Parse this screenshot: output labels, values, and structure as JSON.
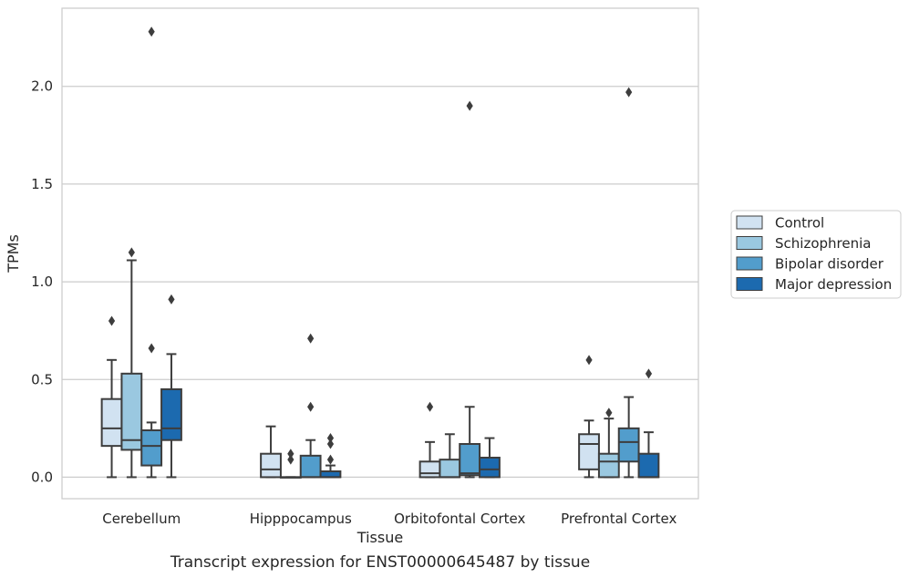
{
  "chart_data": {
    "type": "box",
    "xlabel": "Tissue",
    "ylabel": "TPMs",
    "caption": "Transcript expression for ENST00000645487 by tissue",
    "ylim": [
      -0.11,
      2.4
    ],
    "yticks": [
      0.0,
      0.5,
      1.0,
      1.5,
      2.0
    ],
    "ytick_labels": [
      "0.0",
      "0.5",
      "1.0",
      "1.5",
      "2.0"
    ],
    "grid": "horizontal",
    "legend_position": "right",
    "categories": [
      "Cerebellum",
      "Hipppocampus",
      "Orbitofontal Cortex",
      "Prefrontal Cortex"
    ],
    "series": [
      {
        "name": "Control",
        "color": "#d1e2f1",
        "boxes": [
          {
            "whislo": 0.0,
            "q1": 0.16,
            "med": 0.25,
            "q3": 0.4,
            "whishi": 0.6,
            "fliers": [
              0.8
            ]
          },
          {
            "whislo": 0.0,
            "q1": 0.0,
            "med": 0.04,
            "q3": 0.12,
            "whishi": 0.26,
            "fliers": []
          },
          {
            "whislo": 0.0,
            "q1": 0.0,
            "med": 0.02,
            "q3": 0.08,
            "whishi": 0.18,
            "fliers": [
              0.36
            ]
          },
          {
            "whislo": 0.0,
            "q1": 0.04,
            "med": 0.17,
            "q3": 0.22,
            "whishi": 0.29,
            "fliers": [
              0.6
            ]
          }
        ]
      },
      {
        "name": "Schizophrenia",
        "color": "#9ac8e0",
        "boxes": [
          {
            "whislo": 0.0,
            "q1": 0.14,
            "med": 0.19,
            "q3": 0.53,
            "whishi": 1.11,
            "fliers": [
              1.15
            ]
          },
          {
            "whislo": 0.0,
            "q1": 0.0,
            "med": 0.0,
            "q3": 0.0,
            "whishi": 0.0,
            "fliers": [
              0.09,
              0.12
            ]
          },
          {
            "whislo": 0.0,
            "q1": 0.0,
            "med": 0.0,
            "q3": 0.09,
            "whishi": 0.22,
            "fliers": []
          },
          {
            "whislo": 0.0,
            "q1": 0.0,
            "med": 0.08,
            "q3": 0.12,
            "whishi": 0.3,
            "fliers": [
              0.33
            ]
          }
        ]
      },
      {
        "name": "Bipolar disorder",
        "color": "#529dcc",
        "boxes": [
          {
            "whislo": 0.0,
            "q1": 0.06,
            "med": 0.16,
            "q3": 0.24,
            "whishi": 0.28,
            "fliers": [
              0.66,
              2.28
            ]
          },
          {
            "whislo": 0.0,
            "q1": 0.0,
            "med": 0.0,
            "q3": 0.11,
            "whishi": 0.19,
            "fliers": [
              0.36,
              0.71
            ]
          },
          {
            "whislo": 0.0,
            "q1": 0.01,
            "med": 0.02,
            "q3": 0.17,
            "whishi": 0.36,
            "fliers": [
              1.9
            ]
          },
          {
            "whislo": 0.0,
            "q1": 0.08,
            "med": 0.18,
            "q3": 0.25,
            "whishi": 0.41,
            "fliers": [
              1.97
            ]
          }
        ]
      },
      {
        "name": "Major depression",
        "color": "#1c6aaf",
        "boxes": [
          {
            "whislo": 0.0,
            "q1": 0.19,
            "med": 0.25,
            "q3": 0.45,
            "whishi": 0.63,
            "fliers": [
              0.91
            ]
          },
          {
            "whislo": 0.0,
            "q1": 0.0,
            "med": 0.0,
            "q3": 0.03,
            "whishi": 0.06,
            "fliers": [
              0.09,
              0.17,
              0.2
            ]
          },
          {
            "whislo": 0.0,
            "q1": 0.0,
            "med": 0.04,
            "q3": 0.1,
            "whishi": 0.2,
            "fliers": []
          },
          {
            "whislo": 0.0,
            "q1": 0.0,
            "med": 0.0,
            "q3": 0.12,
            "whishi": 0.23,
            "fliers": [
              0.53
            ]
          }
        ]
      }
    ]
  }
}
